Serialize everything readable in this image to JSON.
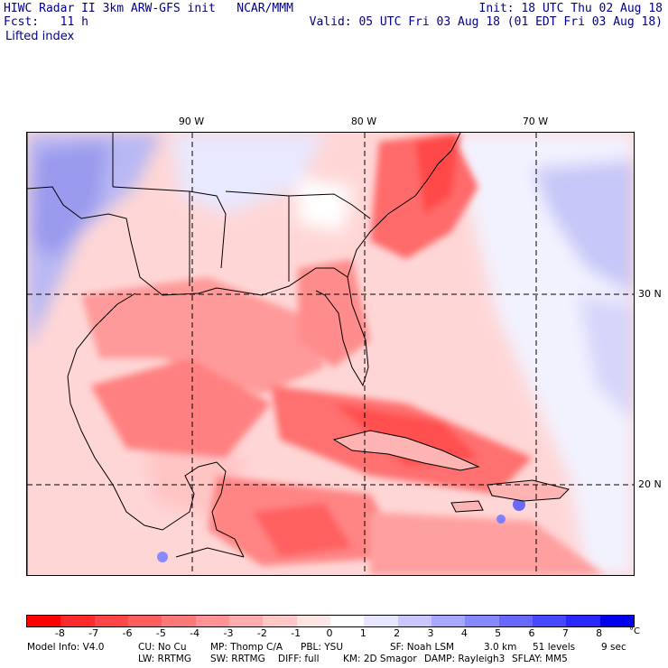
{
  "header": {
    "title": "HIWC Radar II 3km ARW-GFS init   NCAR/MMM",
    "fcst": "Fcst:   11 h",
    "field": "Lifted index",
    "init": "Init: 18 UTC Thu 02 Aug 18",
    "valid": "Valid: 05 UTC Fri 03 Aug 18 (01 EDT Fri 03 Aug 18)"
  },
  "map": {
    "lon_labels": [
      "90 W",
      "80 W",
      "70 W"
    ],
    "lat_labels": [
      "30 N",
      "20 N"
    ]
  },
  "colorbar": {
    "unit": "°C",
    "ticks": [
      "-8",
      "-7",
      "-6",
      "-5",
      "-4",
      "-3",
      "-2",
      "-1",
      "0",
      "1",
      "2",
      "3",
      "4",
      "5",
      "6",
      "7",
      "8"
    ],
    "colors": [
      "#ff0000",
      "#ff2a2a",
      "#ff4646",
      "#ff5e5e",
      "#ff7878",
      "#ff9292",
      "#ffacac",
      "#ffc8c8",
      "#ffe4e4",
      "#ffffff",
      "#e6e6ff",
      "#c8c8ff",
      "#a8a8ff",
      "#8888ff",
      "#6868ff",
      "#4848ff",
      "#2828ff",
      "#0000ee"
    ]
  },
  "footer": {
    "row1": [
      "Model Info: V4.0",
      "CU: No Cu",
      "MP: Thomp C/A",
      "PBL: YSU",
      "SF: Noah LSM",
      "3.0 km",
      "51 levels",
      "9 sec"
    ],
    "row2": [
      "LW: RRTMG",
      "SW: RRTMG",
      "DIFF: full",
      "KM: 2D Smagor",
      "DAMP: Rayleigh3",
      "SFLAY: MM5"
    ]
  }
}
